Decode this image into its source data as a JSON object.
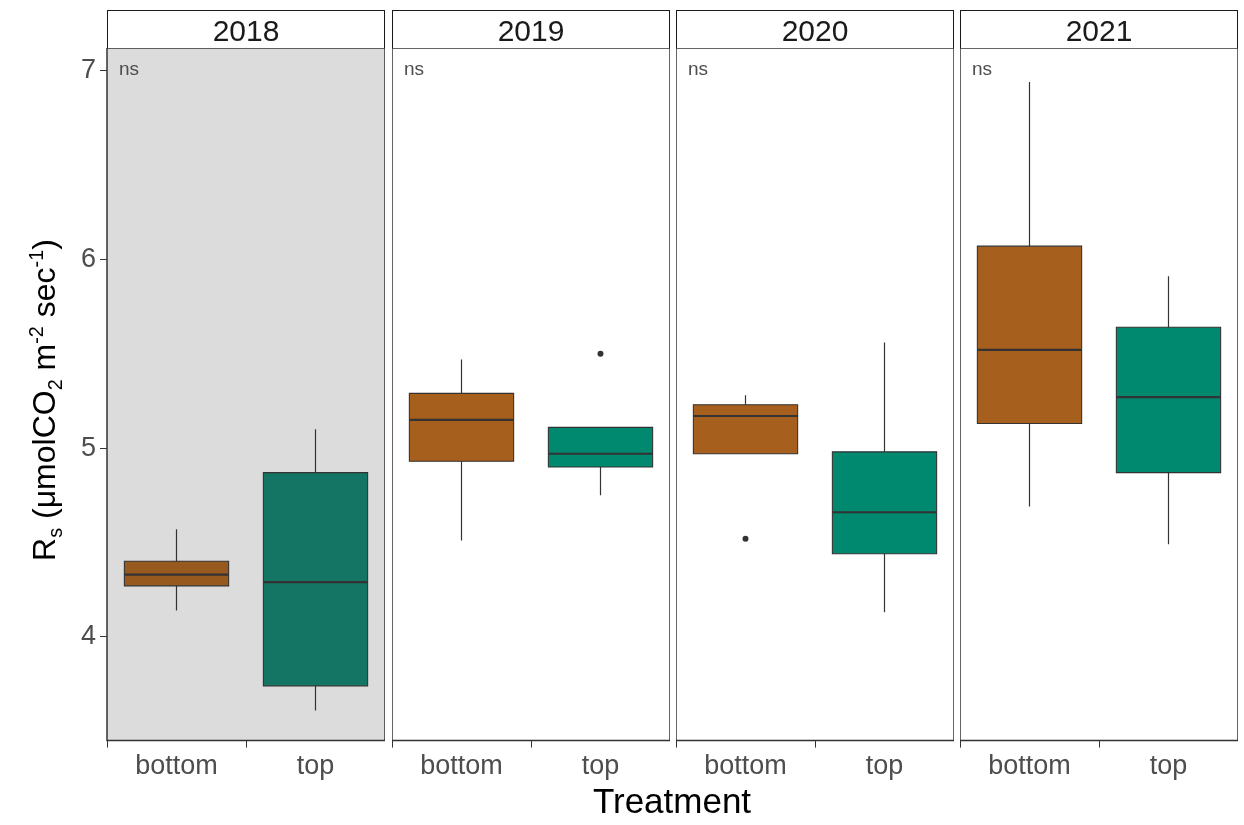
{
  "chart_data": [
    {
      "type": "box",
      "title": "2018",
      "categories": [
        "bottom",
        "top"
      ],
      "colors": [
        "#98591f",
        "#147565"
      ],
      "boxes": [
        {
          "low": 4.14,
          "q1": 4.27,
          "median": 4.33,
          "q3": 4.4,
          "high": 4.57
        },
        {
          "low": 3.61,
          "q1": 3.74,
          "median": 4.29,
          "q3": 4.87,
          "high": 5.1
        }
      ],
      "ylim": [
        3.45,
        7.12
      ],
      "yticks": [
        4,
        5,
        6,
        7
      ],
      "ylabel": "R$_{s}$ (μmolCO$_{2}$  m$^{-2}$  sec$^{-1}$)",
      "bands": [
        {
          "axis": "y",
          "from": 3.45,
          "to": 7.12,
          "color": "#dcdcdc"
        }
      ],
      "annotations": [
        "ns"
      ],
      "grid": false
    },
    {
      "type": "box",
      "title": "2019",
      "categories": [
        "bottom",
        "top"
      ],
      "colors": [
        "#a65f1c",
        "#00896f"
      ],
      "boxes": [
        {
          "low": 4.51,
          "q1": 4.93,
          "median": 5.15,
          "q3": 5.29,
          "high": 5.47
        },
        {
          "low": 4.75,
          "q1": 4.9,
          "median": 4.97,
          "q3": 5.11,
          "high": 5.11,
          "outliers": [
            5.5
          ]
        }
      ],
      "ylim": [
        3.45,
        7.12
      ],
      "yticks": [
        4,
        5,
        6,
        7
      ],
      "tick_labels": "x",
      "xlabel": "Treatment",
      "annotations": [
        "ns"
      ],
      "grid": false
    },
    {
      "type": "box",
      "title": "2020",
      "categories": [
        "bottom",
        "top"
      ],
      "colors": [
        "#a65f1c",
        "#00896f"
      ],
      "boxes": [
        {
          "low": 4.97,
          "q1": 4.97,
          "median": 5.17,
          "q3": 5.23,
          "high": 5.28,
          "outliers": [
            4.52
          ]
        },
        {
          "low": 4.13,
          "q1": 4.44,
          "median": 4.66,
          "q3": 4.98,
          "high": 5.56
        }
      ],
      "ylim": [
        3.45,
        7.12
      ],
      "yticks": [
        4,
        5,
        6,
        7
      ],
      "tick_labels": "x",
      "annotations": [
        "ns"
      ],
      "grid": false
    },
    {
      "type": "box",
      "title": "2021",
      "categories": [
        "bottom",
        "top"
      ],
      "colors": [
        "#a65f1c",
        "#00896f"
      ],
      "boxes": [
        {
          "low": 4.69,
          "q1": 5.13,
          "median": 5.52,
          "q3": 6.07,
          "high": 6.94
        },
        {
          "low": 4.49,
          "q1": 4.87,
          "median": 5.27,
          "q3": 5.64,
          "high": 5.91
        }
      ],
      "ylim": [
        3.45,
        7.12
      ],
      "yticks": [
        4,
        5,
        6,
        7
      ],
      "tick_labels": "x",
      "annotations": [
        "ns"
      ],
      "grid": false
    }
  ]
}
